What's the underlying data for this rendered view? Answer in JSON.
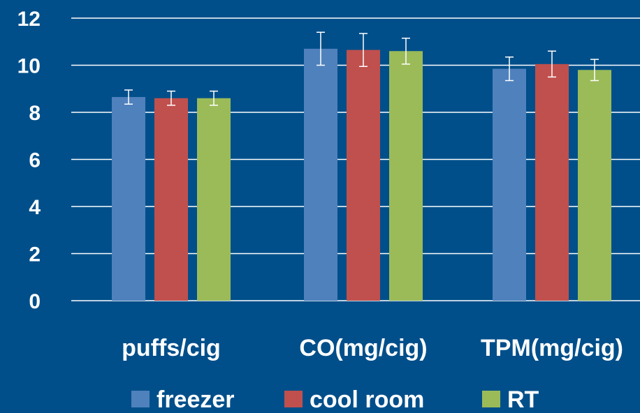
{
  "chart_data": {
    "type": "bar",
    "title": "",
    "xlabel": "",
    "ylabel": "",
    "ylim": [
      0,
      12
    ],
    "yticks": [
      "0",
      "2",
      "4",
      "6",
      "8",
      "10",
      "12"
    ],
    "grid": true,
    "legend_position": "bottom",
    "categories": [
      "puffs/cig",
      "CO(mg/cig)",
      "TPM(mg/cig)"
    ],
    "series": [
      {
        "name": "freezer",
        "color": "#4f81bd",
        "values": [
          8.65,
          10.7,
          9.85
        ],
        "errors": [
          0.3,
          0.7,
          0.5
        ]
      },
      {
        "name": "cool room",
        "color": "#c0504d",
        "values": [
          8.6,
          10.65,
          10.05
        ],
        "errors": [
          0.3,
          0.7,
          0.55
        ]
      },
      {
        "name": "RT",
        "color": "#9bbb59",
        "values": [
          8.6,
          10.6,
          9.8
        ],
        "errors": [
          0.3,
          0.55,
          0.45
        ]
      }
    ],
    "colors": {
      "background": "#004f8a",
      "grid": "#ffffff",
      "text": "#ffffff"
    }
  }
}
